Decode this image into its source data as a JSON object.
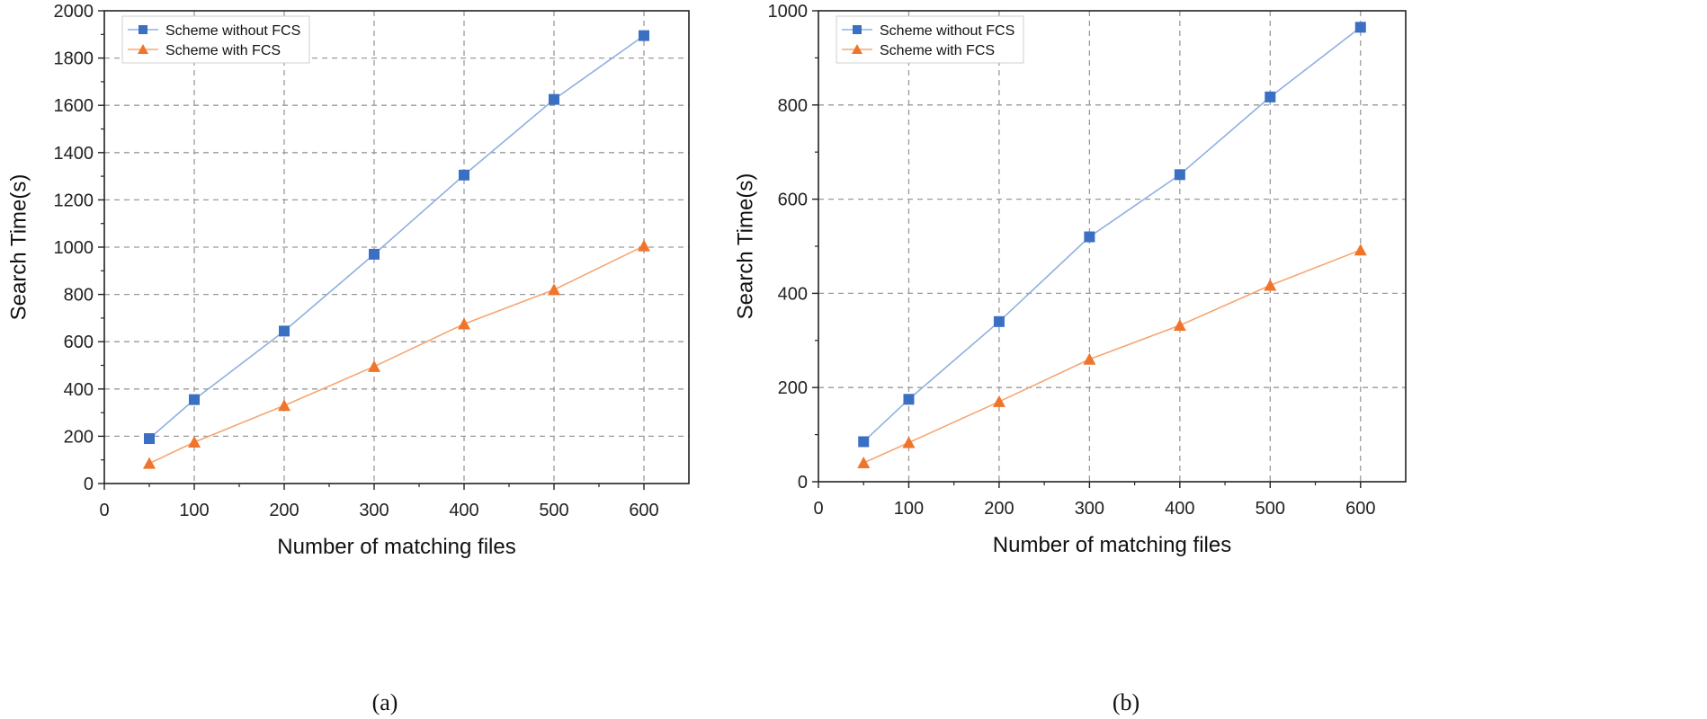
{
  "chart_data": [
    {
      "type": "line",
      "caption": "(a)",
      "title": "",
      "xlabel": "Number of matching files",
      "ylabel": "Search Time(s)",
      "xlim": [
        0,
        650
      ],
      "ylim": [
        0,
        2000
      ],
      "xticks": [
        0,
        100,
        200,
        300,
        400,
        500,
        600
      ],
      "yticks": [
        0,
        200,
        400,
        600,
        800,
        1000,
        1200,
        1400,
        1600,
        1800,
        2000
      ],
      "grid": true,
      "legend_position": "top-left",
      "x": [
        50,
        100,
        200,
        300,
        400,
        500,
        600
      ],
      "series": [
        {
          "name": "Scheme without FCS",
          "color": "#3a6fc4",
          "line_color": "#8fb0e0",
          "marker": "square",
          "values": [
            190,
            355,
            645,
            970,
            1305,
            1625,
            1895
          ]
        },
        {
          "name": "Scheme with FCS",
          "color": "#f0742a",
          "line_color": "#f5a673",
          "marker": "triangle",
          "values": [
            85,
            175,
            330,
            495,
            675,
            820,
            1005
          ]
        }
      ]
    },
    {
      "type": "line",
      "caption": "(b)",
      "title": "",
      "xlabel": "Number of matching files",
      "ylabel": "Search Time(s)",
      "xlim": [
        0,
        650
      ],
      "ylim": [
        0,
        1000
      ],
      "xticks": [
        0,
        100,
        200,
        300,
        400,
        500,
        600
      ],
      "yticks": [
        0,
        200,
        400,
        600,
        800,
        1000
      ],
      "grid": true,
      "legend_position": "top-left",
      "x": [
        50,
        100,
        200,
        300,
        400,
        500,
        600
      ],
      "series": [
        {
          "name": "Scheme without FCS",
          "color": "#3a6fc4",
          "line_color": "#8fb0e0",
          "marker": "square",
          "values": [
            85,
            175,
            340,
            520,
            652,
            817,
            965
          ]
        },
        {
          "name": "Scheme with FCS",
          "color": "#f0742a",
          "line_color": "#f5a673",
          "marker": "triangle",
          "values": [
            40,
            83,
            170,
            260,
            332,
            417,
            492
          ]
        }
      ]
    }
  ]
}
